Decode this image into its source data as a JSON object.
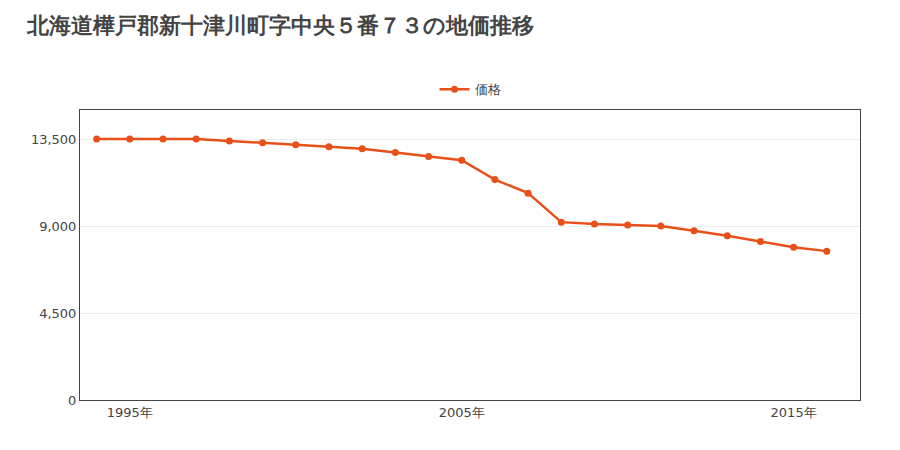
{
  "chart_data": {
    "type": "line",
    "title": "北海道樺戸郡新十津川町字中央５番７３の地価推移",
    "x": [
      1994,
      1995,
      1996,
      1997,
      1998,
      1999,
      2000,
      2001,
      2002,
      2003,
      2004,
      2005,
      2006,
      2007,
      2008,
      2009,
      2010,
      2011,
      2012,
      2013,
      2014,
      2015,
      2016
    ],
    "series": [
      {
        "name": "価格",
        "color": "#e8501a",
        "marker": "circle",
        "line_style": "solid",
        "values": [
          13500,
          13500,
          13500,
          13500,
          13400,
          13300,
          13200,
          13100,
          13000,
          12800,
          12600,
          12400,
          11400,
          10700,
          9200,
          9100,
          9050,
          9000,
          8750,
          8500,
          8200,
          7900,
          7700
        ]
      }
    ],
    "xlim": [
      1993.5,
      2017.0
    ],
    "xticks": [
      {
        "value": 1995,
        "label": "1995年"
      },
      {
        "value": 2005,
        "label": "2005年"
      },
      {
        "value": 2015,
        "label": "2015年"
      }
    ],
    "ylim": [
      0,
      15000
    ],
    "yticks": [
      0,
      {
        "value": 4500,
        "label": "4,500"
      },
      {
        "value": 9000,
        "label": "9,000"
      },
      {
        "value": 13500,
        "label": "13,500"
      }
    ],
    "grid": "y",
    "legend": "top"
  }
}
